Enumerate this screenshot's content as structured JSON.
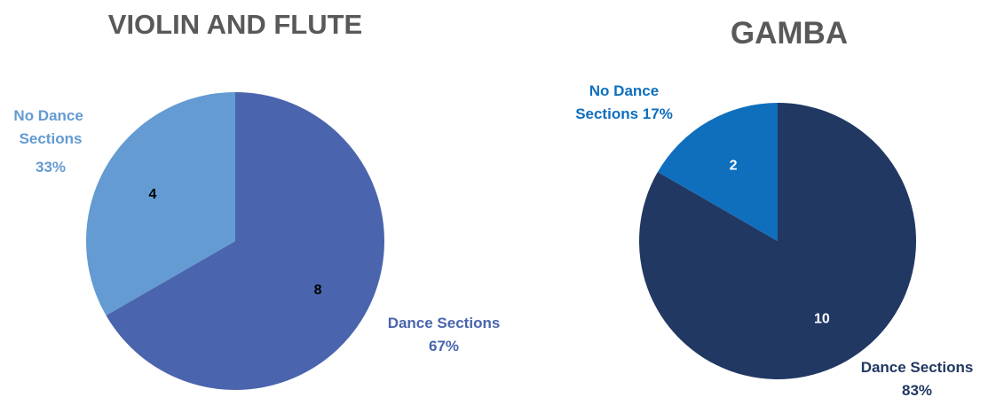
{
  "chart_data": [
    {
      "type": "pie",
      "title": "VIOLIN AND FLUTE",
      "categories": [
        "Dance Sections",
        "No Dance Sections"
      ],
      "values": [
        8,
        4
      ],
      "percent_labels": [
        "67%",
        "33%"
      ],
      "colors": [
        "#4a65ad",
        "#639bd2"
      ],
      "value_label_colors": [
        "#000000",
        "#000000"
      ]
    },
    {
      "type": "pie",
      "title": "GAMBA",
      "categories": [
        "Dance Sections",
        "No Dance Sections"
      ],
      "values": [
        10,
        2
      ],
      "percent_labels": [
        "83%",
        "17%"
      ],
      "colors": [
        "#213863",
        "#0f6fbd"
      ],
      "value_label_colors": [
        "#ffffff",
        "#ffffff"
      ]
    }
  ]
}
